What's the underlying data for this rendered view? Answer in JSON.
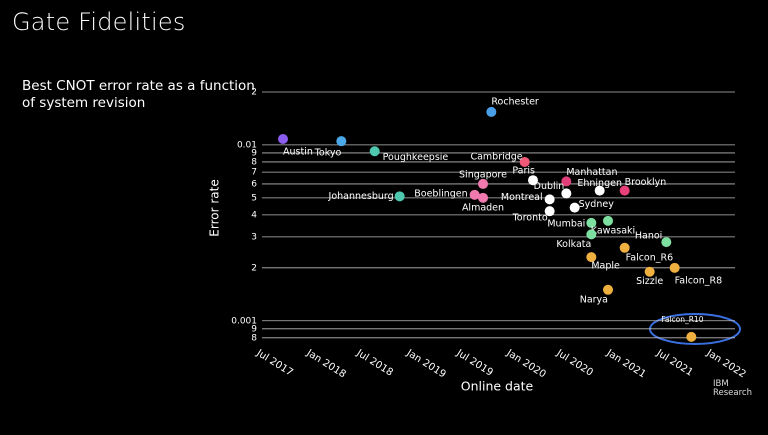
{
  "slide": {
    "title": "Gate Fidelities",
    "logo": [
      "IBM",
      "Research"
    ]
  },
  "chart_data": {
    "type": "scatter",
    "subtitle": "Best CNOT error rate as a function of system revision",
    "xlabel": "Online date",
    "ylabel": "Error rate",
    "log_y": true,
    "grid": true,
    "xlim": [
      "2017-05",
      "2022-02"
    ],
    "xticks": [
      {
        "value": "2017-07",
        "label": "Jul 2017"
      },
      {
        "value": "2018-01",
        "label": "Jan 2018"
      },
      {
        "value": "2018-07",
        "label": "Jul 2018"
      },
      {
        "value": "2019-01",
        "label": "Jan 2019"
      },
      {
        "value": "2019-07",
        "label": "Jul 2019"
      },
      {
        "value": "2020-01",
        "label": "Jan 2020"
      },
      {
        "value": "2020-07",
        "label": "Jul 2020"
      },
      {
        "value": "2021-01",
        "label": "Jan 2021"
      },
      {
        "value": "2021-07",
        "label": "Jul 2021"
      },
      {
        "value": "2022-01",
        "label": "Jan 2022"
      }
    ],
    "ylim": [
      0.0007,
      0.03
    ],
    "yticks": [
      {
        "value": 0.02,
        "label": "2"
      },
      0.01,
      {
        "value": 0.009,
        "label": "9"
      },
      {
        "value": 0.008,
        "label": "8"
      },
      {
        "value": 0.007,
        "label": "7"
      },
      {
        "value": 0.006,
        "label": "6"
      },
      {
        "value": 0.005,
        "label": "5"
      },
      {
        "value": 0.004,
        "label": "4"
      },
      {
        "value": 0.003,
        "label": "3"
      },
      {
        "value": 0.002,
        "label": "2"
      },
      0.001,
      {
        "value": 0.0009,
        "label": "9"
      },
      {
        "value": 0.0008,
        "label": "8"
      }
    ],
    "labels": [
      "Austin",
      "Tokyo",
      "Rochester",
      "Poughkeepsie",
      "Johannesburg",
      "Cambridge",
      "Singapore",
      "Boeblingen",
      "Almaden",
      "Paris",
      "Manhattan",
      "Dublin",
      "Ehningen",
      "Brooklyn",
      "Montreal",
      "Sydney",
      "Toronto",
      "Mumbai",
      "Kawasaki",
      "Kolkata",
      "Hanoi",
      "Falcon_R6",
      "Maple",
      "Sizzle",
      "Falcon_R8",
      "Narya",
      "Falcon_R10"
    ],
    "x": [
      "2017-08",
      "2018-03",
      "2019-09",
      "2018-07",
      "2018-10",
      "2020-01",
      "2019-08",
      "2019-07",
      "2019-08",
      "2020-02",
      "2020-06",
      "2020-06",
      "2020-10",
      "2021-01",
      "2020-04",
      "2020-07",
      "2020-04",
      "2020-09",
      "2020-11",
      "2020-09",
      "2021-06",
      "2021-01",
      "2020-09",
      "2021-04",
      "2021-07",
      "2020-11",
      "2021-09"
    ],
    "values": [
      0.0108,
      0.0105,
      0.0154,
      0.0092,
      0.0051,
      0.008,
      0.006,
      0.0052,
      0.005,
      0.0063,
      0.0062,
      0.0053,
      0.0055,
      0.0055,
      0.0049,
      0.0044,
      0.0042,
      0.0036,
      0.0037,
      0.0031,
      0.0028,
      0.0026,
      0.0023,
      0.0019,
      0.002,
      0.0015,
      0.00081
    ],
    "colors": [
      "#8a5cf0",
      "#4aa8e8",
      "#4a9ee8",
      "#4ec9b0",
      "#4ec9b0",
      "#f05a78",
      "#f07ab0",
      "#f07ab0",
      "#f07ab0",
      "#ffffff",
      "#e0407a",
      "#ffffff",
      "#ffffff",
      "#e8407a",
      "#ffffff",
      "#ffffff",
      "#ffffff",
      "#7de0a0",
      "#7de0a0",
      "#7de0a0",
      "#7de0a0",
      "#f0b040",
      "#f0b040",
      "#f0b040",
      "#f0b040",
      "#f0b040",
      "#f0b040"
    ]
  }
}
